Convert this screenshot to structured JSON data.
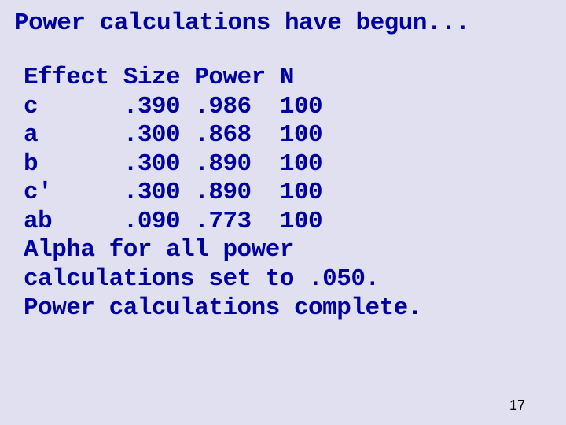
{
  "title": "Power calculations have begun...",
  "table": {
    "headers": {
      "col1": "Effect",
      "col2": "Size",
      "col3": "Power",
      "col4": "N"
    },
    "rows": [
      {
        "effect": "c",
        "size": ".390",
        "power": ".986",
        "n": "100"
      },
      {
        "effect": "a",
        "size": ".300",
        "power": ".868",
        "n": "100"
      },
      {
        "effect": "b",
        "size": ".300",
        "power": ".890",
        "n": "100"
      },
      {
        "effect": "c'",
        "size": ".300",
        "power": ".890",
        "n": "100"
      },
      {
        "effect": "ab",
        "size": ".090",
        "power": ".773",
        "n": "100"
      }
    ]
  },
  "footer_lines": [
    "Alpha for all power",
    "calculations set to .050.",
    "Power calculations complete."
  ],
  "page_number": "17",
  "colors": {
    "background": "#e0e0f0",
    "text": "#0000a0",
    "page_num": "#000000"
  }
}
